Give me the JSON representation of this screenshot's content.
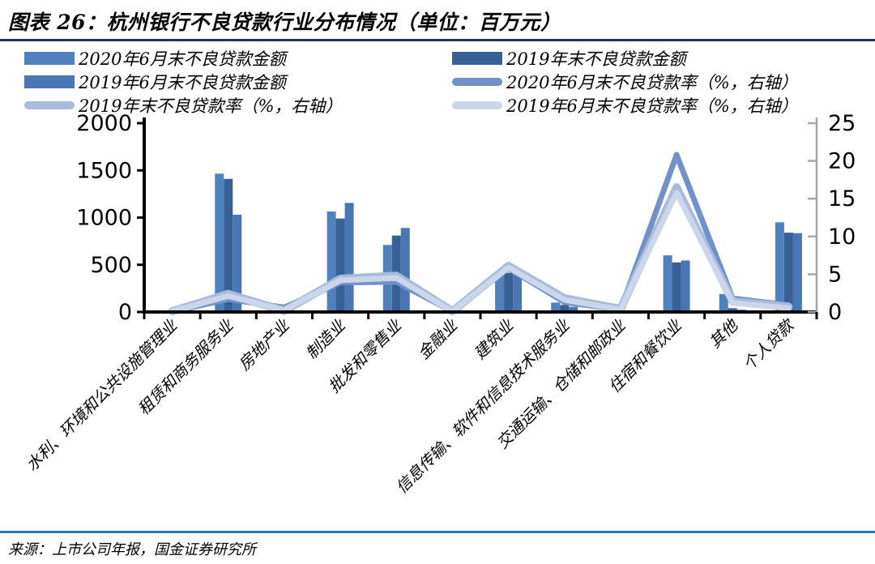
{
  "figure": {
    "title": "图表 26：杭州银行不良贷款行业分布情况（单位：百万元）",
    "source": "来源：上市公司年报，国金证券研究所"
  },
  "colors": {
    "rule_top": "#17365d",
    "rule_bottom": "#2e75b6",
    "axis_black": "#000000",
    "axis_gray": "#a6a6a6",
    "text": "#000000"
  },
  "chart_data": {
    "type": "bar",
    "subtype": "grouped-bar-with-lines-combo",
    "categories": [
      "水利、环境和公共设施管理业",
      "租赁和商务服务业",
      "房地产业",
      "制造业",
      "批发和零售业",
      "金融业",
      "建筑业",
      "信息传输、软件和信息技术服务业",
      "交通运输、仓储和邮政业",
      "住宿和餐饮业",
      "其他",
      "个人贷款"
    ],
    "bar_series": [
      {
        "name": "2020年6月末不良贷款金额",
        "axis": "left",
        "color": "#4f81bd",
        "values": [
          3,
          1465,
          55,
          1065,
          710,
          10,
          430,
          100,
          15,
          600,
          190,
          950
        ]
      },
      {
        "name": "2019年末不良贷款金额",
        "axis": "left",
        "color": "#386096",
        "values": [
          3,
          1410,
          15,
          990,
          810,
          8,
          415,
          75,
          10,
          525,
          40,
          840
        ]
      },
      {
        "name": "2019年6月末不良贷款金额",
        "axis": "left",
        "color": "#4a76b4",
        "values": [
          3,
          1030,
          10,
          1155,
          890,
          5,
          395,
          55,
          8,
          545,
          25,
          835
        ]
      }
    ],
    "line_series": [
      {
        "name": "2020年6月末不良贷款率（%，右轴）",
        "axis": "right",
        "color": "#7191c8",
        "width": 7,
        "values": [
          0.05,
          1.7,
          0.6,
          3.9,
          4.0,
          0.05,
          5.8,
          1.3,
          0.3,
          20.8,
          1.8,
          0.9
        ]
      },
      {
        "name": "2019年末不良贷款率（%，右轴）",
        "axis": "right",
        "color": "#a9badc",
        "width": 10,
        "values": [
          0.1,
          2.4,
          0.15,
          4.4,
          4.8,
          0.1,
          6.1,
          1.8,
          0.4,
          16.5,
          1.4,
          0.7
        ]
      },
      {
        "name": "2019年6月末不良贷款率（%，右轴）",
        "axis": "right",
        "color": "#ccd6ea",
        "width": 7,
        "values": [
          0.1,
          2.1,
          0.25,
          4.2,
          4.5,
          0.1,
          5.9,
          1.6,
          0.3,
          15.8,
          1.2,
          0.5
        ]
      }
    ],
    "left_axis": {
      "min": 0,
      "max": 2000,
      "ticks": [
        0,
        500,
        1000,
        1500,
        2000
      ]
    },
    "right_axis": {
      "min": 0,
      "max": 25,
      "ticks": [
        0,
        5,
        10,
        15,
        20,
        25
      ]
    },
    "legend_position": "top",
    "grid": false,
    "title": "杭州银行不良贷款行业分布情况",
    "unit": "百万元"
  }
}
